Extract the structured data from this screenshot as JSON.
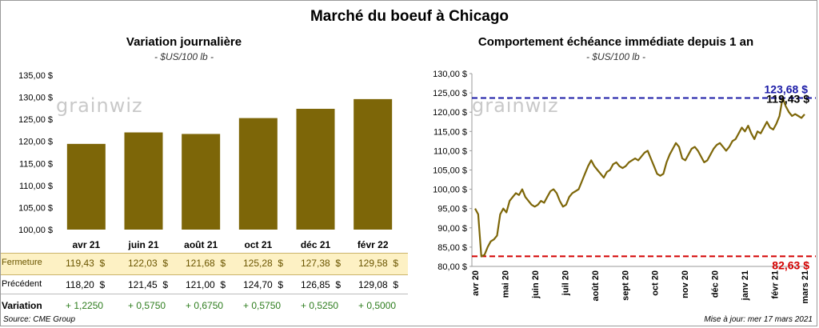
{
  "main_title": "Marché du boeuf à Chicago",
  "left": {
    "title": "Variation  journalière",
    "unit": "- $US/100 lb -",
    "watermark": "grainwiz"
  },
  "right": {
    "title": "Comportement  échéance  immédiate  depuis  1 an",
    "unit": "- $US/100 lb -",
    "watermark": "grainwiz"
  },
  "table": {
    "rows": [
      {
        "label": "Fermeture",
        "values": [
          "119,43  $",
          "122,03  $",
          "121,68  $",
          "125,28  $",
          "127,38  $",
          "129,58  $"
        ]
      },
      {
        "label": "Précédent",
        "values": [
          "118,20  $",
          "121,45  $",
          "121,00  $",
          "124,70  $",
          "126,85  $",
          "129,08  $"
        ]
      },
      {
        "label": "Variation",
        "values": [
          "+ 1,2250",
          "+ 0,5750",
          "+ 0,6750",
          "+ 0,5750",
          "+ 0,5250",
          "+ 0,5000"
        ]
      }
    ]
  },
  "footer": {
    "source": "Source: CME Group",
    "updated": "Mise à jour: mer 17 mars 2021"
  },
  "colors": {
    "bar": "#7d6608",
    "highlight_row": "#fdf1c4",
    "positive": "#2e7d1e",
    "max_line": "#1a1aa6",
    "min_line": "#d40000"
  },
  "chart_data": [
    {
      "type": "bar",
      "title": "Variation  journalière",
      "categories": [
        "avr 21",
        "juin 21",
        "août 21",
        "oct 21",
        "déc 21",
        "févr 22"
      ],
      "values": [
        119.43,
        122.03,
        121.68,
        125.28,
        127.38,
        129.58
      ],
      "ylim": [
        100,
        135
      ],
      "yticks": [
        "100,00 $",
        "105,00 $",
        "110,00 $",
        "115,00 $",
        "120,00 $",
        "125,00 $",
        "130,00 $",
        "135,00 $"
      ],
      "ytick_values": [
        100,
        105,
        110,
        115,
        120,
        125,
        130,
        135
      ]
    },
    {
      "type": "line",
      "title": "Comportement  échéance  immédiate  depuis  1 an",
      "ylim": [
        80,
        130
      ],
      "yticks": [
        "80,00 $",
        "85,00 $",
        "90,00 $",
        "95,00 $",
        "100,00 $",
        "105,00 $",
        "110,00 $",
        "115,00 $",
        "120,00 $",
        "125,00 $",
        "130,00 $"
      ],
      "ytick_values": [
        80,
        85,
        90,
        95,
        100,
        105,
        110,
        115,
        120,
        125,
        130
      ],
      "xticks": [
        "avr 20",
        "mai 20",
        "juin 20",
        "juil 20",
        "août 20",
        "sept 20",
        "oct 20",
        "nov 20",
        "déc 20",
        "janv 21",
        "févr 21",
        "mars 21"
      ],
      "max": {
        "value": 123.68,
        "label": "123,68 $"
      },
      "min": {
        "value": 82.63,
        "label": "82,63 $"
      },
      "last": {
        "value": 119.43,
        "label": "119,43 $"
      },
      "values": [
        95,
        93.5,
        82.6,
        83,
        85,
        86.5,
        87,
        88,
        93.5,
        95,
        94,
        97,
        98,
        99,
        98.5,
        100,
        98,
        97,
        96,
        95.5,
        96,
        97,
        96.5,
        98,
        99.5,
        100,
        99,
        97,
        95.5,
        96,
        98,
        99,
        99.5,
        100,
        102,
        104,
        106,
        107.5,
        106,
        105,
        104,
        103,
        104.5,
        105,
        106.5,
        107,
        106,
        105.5,
        106,
        107,
        107.5,
        108,
        107.5,
        108.5,
        109.5,
        110,
        108,
        106,
        104,
        103.5,
        104,
        107,
        109,
        110.5,
        112,
        111,
        108,
        107.5,
        109,
        110.5,
        111,
        110,
        108.5,
        107,
        107.5,
        109,
        110.5,
        111.5,
        112,
        111,
        110,
        111,
        112.5,
        113,
        114.5,
        116,
        115,
        116.5,
        114.5,
        113,
        115,
        114.5,
        116,
        117.5,
        116,
        115.5,
        117,
        119,
        123.68,
        121.5,
        120,
        119,
        119.5,
        119,
        118.5,
        119.43
      ]
    }
  ]
}
